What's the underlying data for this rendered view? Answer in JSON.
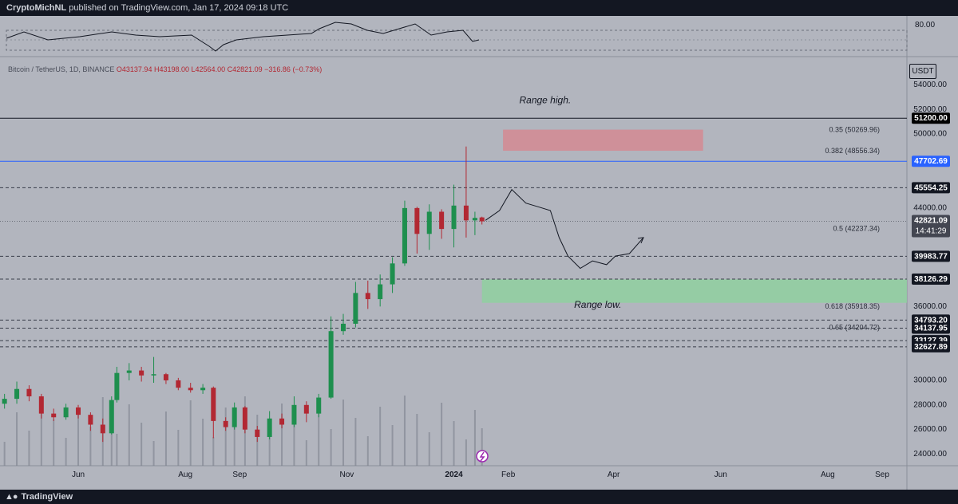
{
  "header": {
    "publisher": "CryptoMichNL",
    "published_text": "published on TradingView.com, Jan 17, 2024 09:18 UTC"
  },
  "footer": {
    "brand": "TradingView"
  },
  "legend": {
    "symbol": "Bitcoin / TetherUS, 1D, BINANCE",
    "open": "O43137.94",
    "high": "H43198.00",
    "low": "L42564.00",
    "close": "C42821.09",
    "change": "−316.86 (−0.73%)"
  },
  "currency": "USDT",
  "colors": {
    "bull": "#1e8f4e",
    "bear": "#b22833",
    "range_high_line": "#131722",
    "blue_line": "#2962ff",
    "red_zone": "#d48a93",
    "green_zone": "#8fd0a0",
    "background": "#b2b5be"
  },
  "rsi": {
    "top_label": "80.00"
  },
  "chart_data": {
    "type": "candlestick",
    "symbol": "BTCUSDT",
    "timeframe": "1D",
    "ohlc_last": {
      "open": 43137.94,
      "high": 43198.0,
      "low": 42564.0,
      "close": 42821.09,
      "change": -316.86,
      "change_pct": -0.73
    },
    "y_axis_ticks": [
      24000,
      26000,
      28000,
      30000,
      36000,
      44000,
      50000,
      52000,
      54000
    ],
    "y_axis_tick_labels": [
      "24000.00",
      "26000.00",
      "28000.00",
      "30000.00",
      "36000.00",
      "44000.00",
      "50000.00",
      "52000.00",
      "54000.00"
    ],
    "x_axis_labels": [
      "Jun",
      "Aug",
      "Sep",
      "Nov",
      "2024",
      "Feb",
      "Apr",
      "Jun",
      "Aug",
      "Sep"
    ],
    "x_axis_dates": [
      "2023-06-01",
      "2023-08-01",
      "2023-09-01",
      "2023-11-01",
      "2024-01-01",
      "2024-02-01",
      "2024-04-01",
      "2024-06-01",
      "2024-08-01",
      "2024-09-01"
    ],
    "price_levels": [
      {
        "label": "51200.00",
        "value": 51200,
        "style": "solid-black"
      },
      {
        "label": "47702.69",
        "value": 47702.69,
        "style": "solid-blue"
      },
      {
        "label": "45554.25",
        "value": 45554.25,
        "style": "dashed"
      },
      {
        "label": "42821.09",
        "value": 42821.09,
        "style": "dotted-current"
      },
      {
        "label": "39983.77",
        "value": 39983.77,
        "style": "dashed"
      },
      {
        "label": "38126.29",
        "value": 38126.29,
        "style": "dashed"
      },
      {
        "label": "34793.20",
        "value": 34793.2,
        "style": "dashed"
      },
      {
        "label": "34137.95",
        "value": 34137.95,
        "style": "dashed"
      },
      {
        "label": "33127.39",
        "value": 33127.39,
        "style": "dashed"
      },
      {
        "label": "32627.89",
        "value": 32627.89,
        "style": "dashed"
      }
    ],
    "countdown_label": "14:41:29",
    "fib_levels": [
      {
        "label": "0.35 (50269.96)",
        "value": 50269.96
      },
      {
        "label": "0.382 (48556.34)",
        "value": 48556.34
      },
      {
        "label": "0.5 (42237.34)",
        "value": 42237.34
      },
      {
        "label": "0.618 (35918.35)",
        "value": 35918.35
      },
      {
        "label": "0.65 (34204.72)",
        "value": 34204.72
      }
    ],
    "zones": [
      {
        "name": "red",
        "from": "2024-01-29",
        "to": "2024-05-22",
        "y_low": 48556.34,
        "y_high": 50269.96
      },
      {
        "name": "green",
        "from": "2024-01-17",
        "to": "2024-09-30",
        "y_low": 36200,
        "y_high": 38100
      }
    ],
    "annotations": [
      {
        "text": "Range high.",
        "date": "2024-02-22",
        "value": 52400
      },
      {
        "text": "Range low.",
        "date": "2024-03-23",
        "value": 35800
      }
    ],
    "projection_path": [
      [
        "2024-01-19",
        42900
      ],
      [
        "2024-01-27",
        43700
      ],
      [
        "2024-02-03",
        45400
      ],
      [
        "2024-02-11",
        44300
      ],
      [
        "2024-02-18",
        44000
      ],
      [
        "2024-02-25",
        43700
      ],
      [
        "2024-03-01",
        41500
      ],
      [
        "2024-03-06",
        40000
      ],
      [
        "2024-03-13",
        39000
      ],
      [
        "2024-03-20",
        39600
      ],
      [
        "2024-03-28",
        39300
      ],
      [
        "2024-04-02",
        40000
      ],
      [
        "2024-04-10",
        40200
      ],
      [
        "2024-04-18",
        41500
      ]
    ],
    "candles_note": "Daily candles Apr 2023 – Jan 17, 2024",
    "candles": [
      [
        "2023-04-20",
        28000,
        28800,
        27600,
        28400
      ],
      [
        "2023-04-27",
        28400,
        29800,
        28000,
        29200
      ],
      [
        "2023-05-04",
        29200,
        29500,
        28200,
        28600
      ],
      [
        "2023-05-11",
        28600,
        28800,
        26800,
        27200
      ],
      [
        "2023-05-18",
        27200,
        27600,
        26600,
        26900
      ],
      [
        "2023-05-25",
        26900,
        28000,
        26700,
        27700
      ],
      [
        "2023-06-01",
        27700,
        27900,
        26800,
        27100
      ],
      [
        "2023-06-08",
        27100,
        27300,
        25800,
        26300
      ],
      [
        "2023-06-15",
        26300,
        26800,
        24900,
        25600
      ],
      [
        "2023-06-20",
        25600,
        28600,
        25500,
        28300
      ],
      [
        "2023-06-23",
        28300,
        31000,
        28100,
        30500
      ],
      [
        "2023-06-30",
        30500,
        31300,
        29900,
        30700
      ],
      [
        "2023-07-07",
        30700,
        31000,
        29800,
        30300
      ],
      [
        "2023-07-14",
        30300,
        31800,
        29700,
        30400
      ],
      [
        "2023-07-21",
        30400,
        30500,
        29600,
        29900
      ],
      [
        "2023-07-28",
        29900,
        30100,
        29100,
        29300
      ],
      [
        "2023-08-04",
        29300,
        29700,
        28900,
        29100
      ],
      [
        "2023-08-11",
        29100,
        29600,
        28800,
        29300
      ],
      [
        "2023-08-17",
        29300,
        29400,
        25200,
        26600
      ],
      [
        "2023-08-24",
        26600,
        26900,
        25800,
        26100
      ],
      [
        "2023-08-29",
        26100,
        28100,
        25900,
        27700
      ],
      [
        "2023-09-04",
        27700,
        27800,
        25600,
        25900
      ],
      [
        "2023-09-11",
        25900,
        26200,
        24900,
        25300
      ],
      [
        "2023-09-18",
        25300,
        27400,
        25100,
        26800
      ],
      [
        "2023-09-25",
        26800,
        27200,
        26000,
        26300
      ],
      [
        "2023-10-02",
        26300,
        28600,
        26100,
        27900
      ],
      [
        "2023-10-09",
        27900,
        28200,
        26500,
        27200
      ],
      [
        "2023-10-16",
        27200,
        28800,
        26900,
        28500
      ],
      [
        "2023-10-23",
        28500,
        35100,
        28400,
        33900
      ],
      [
        "2023-10-30",
        33900,
        35300,
        33600,
        34500
      ],
      [
        "2023-11-06",
        34500,
        37900,
        34200,
        37000
      ],
      [
        "2023-11-13",
        37000,
        38000,
        35700,
        36500
      ],
      [
        "2023-11-20",
        36500,
        38500,
        35900,
        37700
      ],
      [
        "2023-11-27",
        37700,
        39900,
        37000,
        39400
      ],
      [
        "2023-12-04",
        39400,
        44500,
        39200,
        43900
      ],
      [
        "2023-12-11",
        43900,
        44000,
        40200,
        41800
      ],
      [
        "2023-12-18",
        41800,
        44200,
        40500,
        43600
      ],
      [
        "2023-12-25",
        43600,
        43800,
        41400,
        42200
      ],
      [
        "2024-01-01",
        42200,
        45800,
        40700,
        44100
      ],
      [
        "2024-01-08",
        44100,
        48900,
        41500,
        42900
      ],
      [
        "2024-01-13",
        42900,
        43600,
        41700,
        43100
      ],
      [
        "2024-01-17",
        43137.94,
        43198,
        42564,
        42821.09
      ]
    ]
  }
}
